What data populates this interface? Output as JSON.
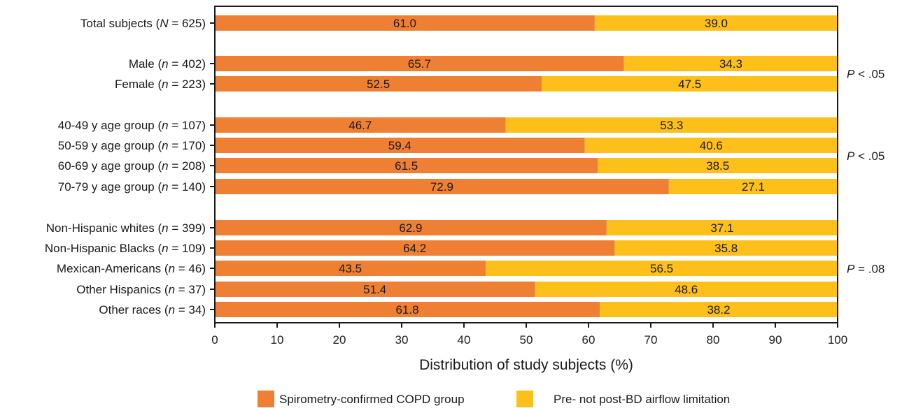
{
  "chart_data": {
    "type": "bar",
    "orientation": "horizontal",
    "stacked": true,
    "xlabel": "Distribution of study subjects (%)",
    "xlim": [
      0,
      100
    ],
    "xticks": [
      0,
      10,
      20,
      30,
      40,
      50,
      60,
      70,
      80,
      90,
      100
    ],
    "grid": false,
    "legend_position": "bottom",
    "categories": [
      {
        "pre": "Total subjects (",
        "var": "N",
        "post": " = 625)",
        "group": 0
      },
      {
        "pre": "Male (",
        "var": "n",
        "post": " = 402)",
        "group": 1
      },
      {
        "pre": "Female (",
        "var": "n",
        "post": " = 223)",
        "group": 1
      },
      {
        "pre": "40-49 y age group (",
        "var": "n",
        "post": " = 107)",
        "group": 2
      },
      {
        "pre": "50-59 y age group (",
        "var": "n",
        "post": " = 170)",
        "group": 2
      },
      {
        "pre": "60-69 y age group (",
        "var": "n",
        "post": " = 208)",
        "group": 2
      },
      {
        "pre": "70-79 y age group (",
        "var": "n",
        "post": " = 140)",
        "group": 2
      },
      {
        "pre": "Non-Hispanic whites (",
        "var": "n",
        "post": " = 399)",
        "group": 3
      },
      {
        "pre": "Non-Hispanic Blacks (",
        "var": "n",
        "post": " = 109)",
        "group": 3
      },
      {
        "pre": "Mexican-Americans (",
        "var": "n",
        "post": " = 46)",
        "group": 3
      },
      {
        "pre": "Other Hispanics (",
        "var": "n",
        "post": " = 37)",
        "group": 3
      },
      {
        "pre": "Other races (",
        "var": "n",
        "post": " = 34)",
        "group": 3
      }
    ],
    "series": [
      {
        "name": "Spirometry-confirmed COPD group",
        "color": "#EF8033",
        "values": [
          61.0,
          65.7,
          52.5,
          46.7,
          59.4,
          61.5,
          72.9,
          62.9,
          64.2,
          43.5,
          51.4,
          61.8
        ],
        "labels": [
          "61.0",
          "65.7",
          "52.5",
          "46.7",
          "59.4",
          "61.5",
          "72.9",
          "62.9",
          "64.2",
          "43.5",
          "51.4",
          "61.8"
        ]
      },
      {
        "name": "Pre- not post-BD airflow limitation",
        "color": "#FDC01A",
        "values": [
          39.0,
          34.3,
          47.5,
          53.3,
          40.6,
          38.5,
          27.1,
          37.1,
          35.8,
          56.5,
          48.6,
          38.2
        ],
        "labels": [
          "39.0",
          "34.3",
          "47.5",
          "53.3",
          "40.6",
          "38.5",
          "27.1",
          "37.1",
          "35.8",
          "56.5",
          "48.6",
          "38.2"
        ]
      }
    ],
    "annotations": [
      {
        "group": 1,
        "var": "P",
        "text": " < .05"
      },
      {
        "group": 2,
        "var": "P",
        "text": " < .05"
      },
      {
        "group": 3,
        "var": "P",
        "text": " = .08"
      }
    ]
  }
}
